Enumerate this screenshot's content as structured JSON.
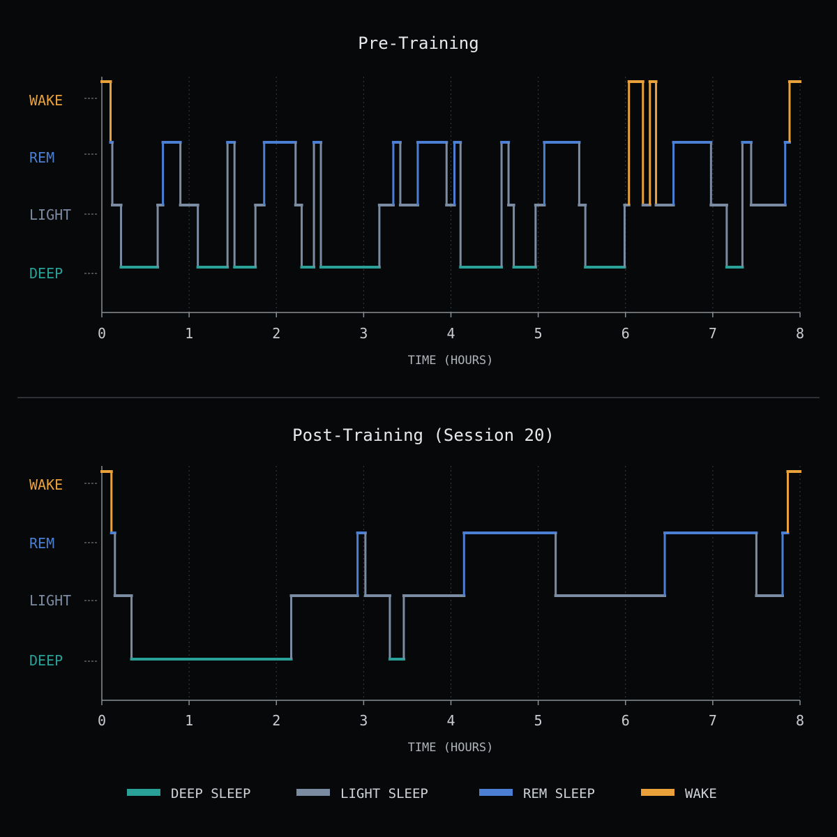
{
  "colors": {
    "background": "#070809",
    "deep": "#2aa198",
    "light": "#7b8ba1",
    "rem": "#4a7fd4",
    "wake": "#e9a23b",
    "axis": "#8a8f96",
    "text": "#c9ccd1",
    "grid": "#3a3f46"
  },
  "legend": [
    {
      "key": "deep",
      "label": "DEEP SLEEP",
      "color": "#2aa198"
    },
    {
      "key": "light",
      "label": "LIGHT SLEEP",
      "color": "#7b8ba1"
    },
    {
      "key": "rem",
      "label": "REM SLEEP",
      "color": "#4a7fd4"
    },
    {
      "key": "wake",
      "label": "WAKE",
      "color": "#e9a23b"
    }
  ],
  "chart_data": [
    {
      "type": "line",
      "title": "Pre-Training",
      "xlabel": "TIME (HOURS)",
      "ylabel": "",
      "xlim": [
        0,
        8
      ],
      "xticks": [
        "0",
        "1",
        "2",
        "3",
        "4",
        "5",
        "6",
        "7",
        "8"
      ],
      "ycategories": [
        "WAKE",
        "REM",
        "LIGHT",
        "DEEP"
      ],
      "grid": "vertical dotted",
      "series": [
        {
          "values": [
            [
              0.0,
              "WAKE"
            ],
            [
              0.1,
              "REM"
            ],
            [
              0.12,
              "LIGHT"
            ],
            [
              0.22,
              "DEEP"
            ],
            [
              0.42,
              "DEEP"
            ],
            [
              0.44,
              "DEEP"
            ],
            [
              0.54,
              "DEEP"
            ],
            [
              0.64,
              "LIGHT"
            ],
            [
              0.7,
              "REM"
            ],
            [
              0.9,
              "LIGHT"
            ],
            [
              1.1,
              "DEEP"
            ],
            [
              1.22,
              "DEEP"
            ],
            [
              1.34,
              "DEEP"
            ],
            [
              1.44,
              "REM"
            ],
            [
              1.52,
              "DEEP"
            ],
            [
              1.76,
              "LIGHT"
            ],
            [
              1.86,
              "REM"
            ],
            [
              2.22,
              "LIGHT"
            ],
            [
              2.29,
              "DEEP"
            ],
            [
              2.43,
              "REM"
            ],
            [
              2.51,
              "DEEP"
            ],
            [
              2.86,
              "DEEP"
            ],
            [
              3.02,
              "DEEP"
            ],
            [
              3.18,
              "LIGHT"
            ],
            [
              3.34,
              "REM"
            ],
            [
              3.42,
              "LIGHT"
            ],
            [
              3.62,
              "REM"
            ],
            [
              3.95,
              "LIGHT"
            ],
            [
              4.04,
              "REM"
            ],
            [
              4.11,
              "DEEP"
            ],
            [
              4.3,
              "DEEP"
            ],
            [
              4.42,
              "DEEP"
            ],
            [
              4.58,
              "REM"
            ],
            [
              4.66,
              "LIGHT"
            ],
            [
              4.72,
              "DEEP"
            ],
            [
              4.97,
              "LIGHT"
            ],
            [
              5.07,
              "REM"
            ],
            [
              5.47,
              "LIGHT"
            ],
            [
              5.54,
              "DEEP"
            ],
            [
              5.87,
              "DEEP"
            ],
            [
              5.99,
              "LIGHT"
            ],
            [
              6.04,
              "WAKE"
            ],
            [
              6.2,
              "LIGHT"
            ],
            [
              6.28,
              "WAKE"
            ],
            [
              6.35,
              "LIGHT"
            ],
            [
              6.55,
              "REM"
            ],
            [
              6.98,
              "LIGHT"
            ],
            [
              7.16,
              "DEEP"
            ],
            [
              7.34,
              "REM"
            ],
            [
              7.44,
              "LIGHT"
            ],
            [
              7.5,
              "LIGHT"
            ],
            [
              7.72,
              "LIGHT"
            ],
            [
              7.83,
              "REM"
            ],
            [
              7.88,
              "WAKE"
            ],
            [
              8.0,
              "WAKE"
            ]
          ]
        }
      ]
    },
    {
      "type": "line",
      "title": "Post-Training (Session 20)",
      "xlabel": "TIME (HOURS)",
      "ylabel": "",
      "xlim": [
        0,
        8
      ],
      "xticks": [
        "0",
        "1",
        "2",
        "3",
        "4",
        "5",
        "6",
        "7",
        "8"
      ],
      "ycategories": [
        "WAKE",
        "REM",
        "LIGHT",
        "DEEP"
      ],
      "grid": "vertical dotted",
      "series": [
        {
          "values": [
            [
              0.0,
              "WAKE"
            ],
            [
              0.11,
              "REM"
            ],
            [
              0.15,
              "LIGHT"
            ],
            [
              0.34,
              "DEEP"
            ],
            [
              2.17,
              "LIGHT"
            ],
            [
              2.93,
              "REM"
            ],
            [
              3.02,
              "LIGHT"
            ],
            [
              3.3,
              "DEEP"
            ],
            [
              3.46,
              "LIGHT"
            ],
            [
              4.15,
              "REM"
            ],
            [
              5.2,
              "LIGHT"
            ],
            [
              6.45,
              "REM"
            ],
            [
              7.5,
              "LIGHT"
            ],
            [
              7.8,
              "REM"
            ],
            [
              7.86,
              "WAKE"
            ],
            [
              8.0,
              "WAKE"
            ]
          ]
        }
      ]
    }
  ]
}
